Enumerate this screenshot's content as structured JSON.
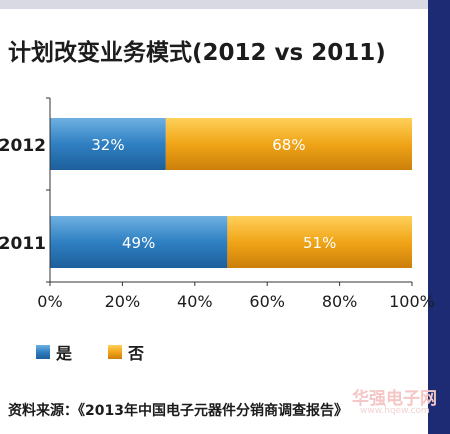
{
  "chart_data": {
    "type": "bar",
    "orientation": "horizontal",
    "stacked": true,
    "title": "计划改变业务模式(2012 vs 2011)",
    "categories": [
      "2012",
      "2011"
    ],
    "series": [
      {
        "name": "是",
        "values": [
          32,
          49
        ],
        "labels": [
          "32%",
          "49%"
        ],
        "color": "#2f80c2"
      },
      {
        "name": "否",
        "values": [
          68,
          51
        ],
        "labels": [
          "68%",
          "51%"
        ],
        "color": "#f0a518"
      }
    ],
    "xlim": [
      0,
      100
    ],
    "xticks": [
      "0%",
      "20%",
      "40%",
      "60%",
      "80%",
      "100%"
    ],
    "legend_position": "bottom-left",
    "grid": false
  },
  "source": "资料来源：《2013年中国电子元器件分销商调查报告》",
  "watermark": {
    "text": "华强电子网",
    "sub": "www.hqew.com"
  }
}
